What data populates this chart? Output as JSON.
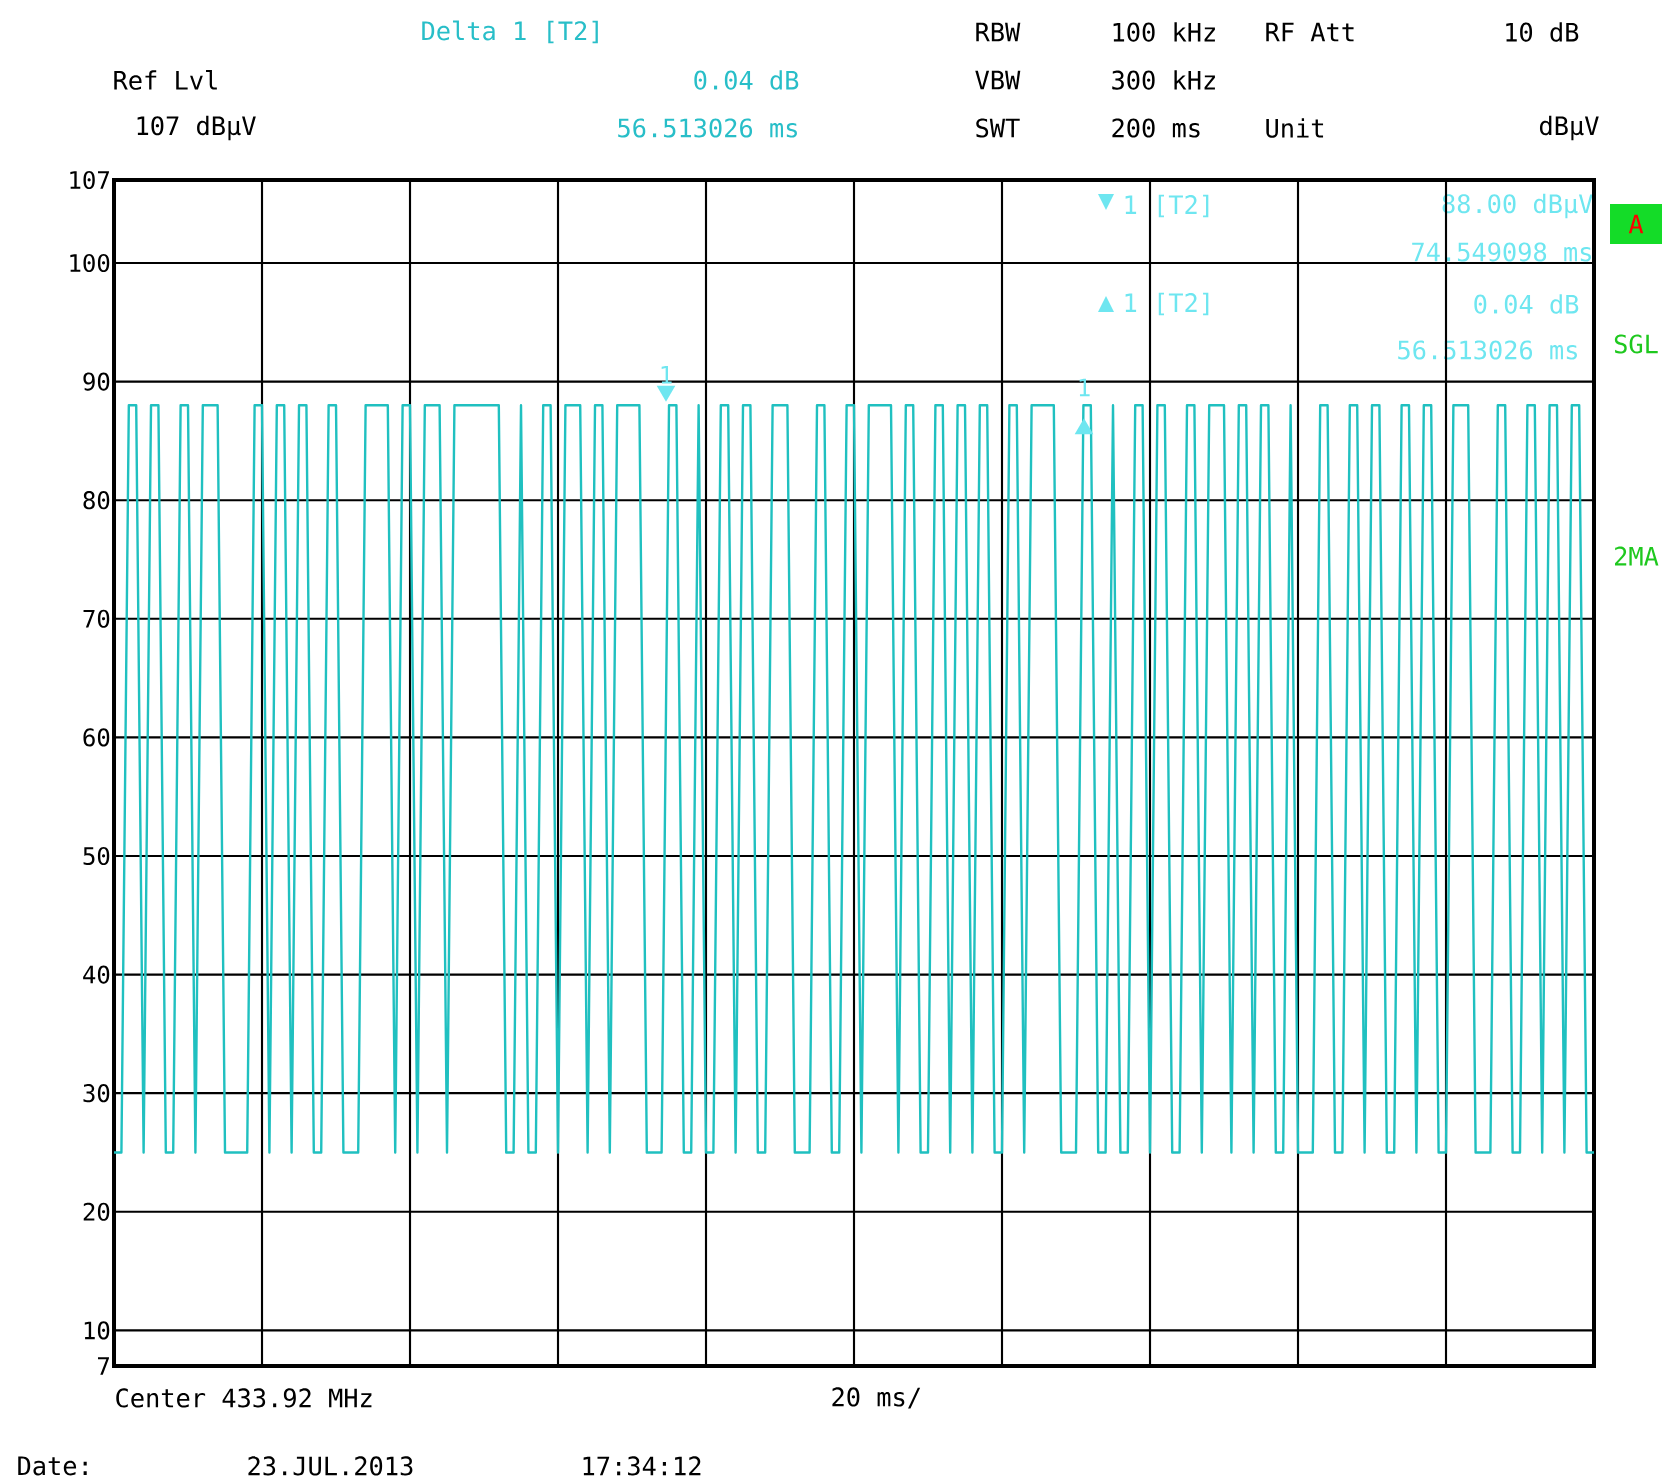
{
  "chart_data": {
    "type": "line",
    "categories": [
      null,
      null,
      null,
      null,
      null,
      null,
      null,
      null,
      null,
      null,
      null,
      null,
      null,
      null,
      null,
      null,
      null,
      null,
      null,
      null,
      null,
      null,
      null,
      null,
      null,
      null,
      null,
      null,
      null,
      null,
      null,
      null,
      null,
      null,
      null,
      null,
      null,
      null,
      null,
      null,
      null,
      null,
      null,
      null,
      null,
      null,
      null,
      null,
      null,
      null,
      null,
      null,
      null,
      null,
      null,
      null,
      null,
      null,
      null,
      null,
      null,
      null,
      null,
      null,
      null,
      null,
      null,
      null,
      null,
      null,
      null,
      null,
      null,
      null,
      null,
      null,
      null,
      null,
      null,
      null,
      null,
      null,
      null,
      null,
      null,
      null,
      null,
      null,
      null,
      null,
      null,
      null,
      null,
      null,
      null,
      null,
      null,
      null,
      null,
      null,
      null,
      null,
      null,
      null,
      null,
      null,
      null,
      null,
      null,
      null,
      null,
      null,
      null,
      null,
      null,
      null,
      null,
      null,
      null,
      null,
      null,
      null,
      null,
      null,
      null,
      null,
      null,
      null,
      null,
      null,
      null,
      null,
      null,
      null,
      null,
      null,
      null,
      null,
      null,
      null,
      null,
      null,
      null,
      null,
      null,
      null,
      null,
      null,
      null,
      null,
      null,
      null,
      null,
      null,
      null,
      null,
      null,
      null,
      null,
      null,
      null,
      null,
      null,
      null,
      null,
      null,
      null,
      null,
      null,
      null,
      null,
      null,
      null,
      null,
      null,
      null,
      null,
      null,
      null,
      null,
      null,
      null,
      null,
      null,
      null,
      null,
      null,
      null,
      null,
      null,
      null,
      null,
      null,
      null,
      null,
      null,
      null,
      null,
      null,
      null,
      null
    ],
    "series": [
      {
        "color": "#20c0c0",
        "values": [
          25,
          25,
          88,
          88,
          25,
          88,
          88,
          25,
          25,
          88,
          88,
          25,
          88,
          88,
          88,
          25,
          25,
          25,
          25,
          88,
          88,
          25,
          88,
          88,
          25,
          88,
          88,
          25,
          25,
          88,
          88,
          25,
          25,
          25,
          88,
          88,
          88,
          88,
          25,
          88,
          88,
          25,
          88,
          88,
          88,
          25,
          88,
          88,
          88,
          88,
          88,
          88,
          88,
          25,
          25,
          88,
          25,
          25,
          88,
          88,
          25,
          88,
          88,
          88,
          25,
          88,
          88,
          25,
          88,
          88,
          88,
          88,
          25,
          25,
          25,
          88,
          88,
          25,
          25,
          88,
          25,
          25,
          88,
          88,
          25,
          88,
          88,
          25,
          25,
          88,
          88,
          88,
          25,
          25,
          25,
          88,
          88,
          25,
          25,
          88,
          88,
          25,
          88,
          88,
          88,
          88,
          25,
          88,
          88,
          25,
          25,
          88,
          88,
          25,
          88,
          88,
          25,
          88,
          88,
          25,
          25,
          88,
          88,
          25,
          88,
          88,
          88,
          88,
          25,
          25,
          25,
          88,
          88,
          25,
          25,
          88,
          25,
          25,
          88,
          88,
          25,
          88,
          88,
          25,
          25,
          88,
          88,
          25,
          88,
          88,
          88,
          25,
          88,
          88,
          25,
          88,
          88,
          25,
          25,
          88,
          25,
          25,
          25,
          88,
          88,
          25,
          25,
          88,
          88,
          25,
          88,
          88,
          25,
          25,
          88,
          88,
          25,
          88,
          88,
          25,
          25,
          88,
          88,
          88,
          25,
          25,
          25,
          88,
          88,
          25,
          25,
          88,
          88,
          25,
          88,
          88,
          25,
          88,
          88,
          25,
          25
        ]
      }
    ],
    "ylim": [
      7,
      107
    ],
    "yticks": [
      7,
      10,
      20,
      30,
      40,
      50,
      60,
      70,
      80,
      90,
      100,
      107
    ],
    "grid": true,
    "tick_labels": "y",
    "marker": "none",
    "line_style": "solid",
    "annotations": [
      "Delta 1 [T2]",
      "0.04 dB",
      "56.513026 ms",
      "RBW",
      "100 kHz",
      "RF Att",
      "10 dB",
      "VBW",
      "300 kHz",
      "SWT",
      "200 ms",
      "Unit",
      "dBµV",
      "Ref Lvl",
      "107 dBµV",
      "1 [T2]",
      "88.00 dBµV",
      "74.549098 ms",
      "1 [T2]",
      "0.04 dB",
      "56.513026 ms",
      "A",
      "SGL",
      "2MA",
      "Center 433.92 MHz",
      "20 ms/",
      "Date:",
      "23.JUL.2013",
      "17:34:12",
      {
        "text": "1",
        "y": 88
      },
      {
        "text": "1",
        "y": 88.04
      }
    ]
  }
}
